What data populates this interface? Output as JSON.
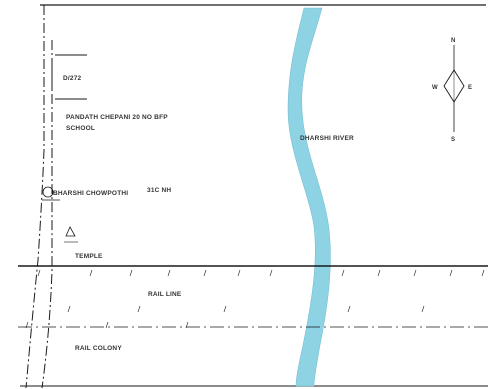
{
  "labels": {
    "plot_code": "D/272",
    "school_line1": "PANDATH CHEPANI 20 NO BFP",
    "school_line2": "SCHOOL",
    "chowpothi": "BHARSHI CHOWPOTHI",
    "nh": "31C NH",
    "river": "DHARSHI RIVER",
    "temple": "TEMPLE",
    "rail_line": "RAIL LINE",
    "rail_colony": "RAIL COLONY"
  },
  "compass": {
    "north": "N",
    "south": "S",
    "east": "E",
    "west": "W"
  },
  "colors": {
    "river": "#8ed3e4",
    "lines": "#1a1a1a",
    "text": "#333333"
  },
  "icons": {
    "temple": "triangle-temple-icon",
    "compass": "compass-rose-icon"
  }
}
